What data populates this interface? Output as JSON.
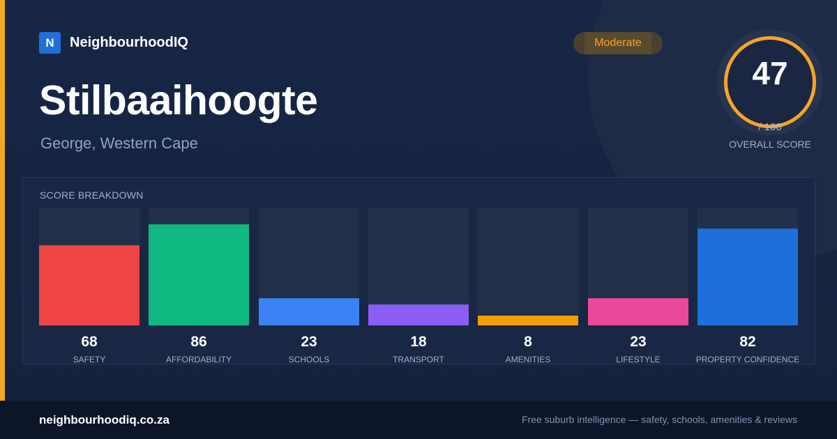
{
  "brand": {
    "logo_letter": "N",
    "name": "NeighbourhoodIQ",
    "accent_color": "#f5a623",
    "logo_color": "#1f6fd9"
  },
  "suburb": {
    "name": "Stilbaaihoogte",
    "location": "George, Western Cape"
  },
  "badge": {
    "label": "Moderate",
    "color": "#f5a623"
  },
  "overall": {
    "score": "47",
    "max": "/ 100",
    "caption": "OVERALL SCORE",
    "fraction": 0.47
  },
  "breakdown": {
    "title": "SCORE BREAKDOWN",
    "items": [
      {
        "value": "68",
        "label": "SAFETY",
        "score": 68,
        "color": "#ef4444"
      },
      {
        "value": "86",
        "label": "AFFORDABILITY",
        "score": 86,
        "color": "#10b981"
      },
      {
        "value": "23",
        "label": "SCHOOLS",
        "score": 23,
        "color": "#3b82f6"
      },
      {
        "value": "18",
        "label": "TRANSPORT",
        "score": 18,
        "color": "#8b5cf6"
      },
      {
        "value": "8",
        "label": "AMENITIES",
        "score": 8,
        "color": "#f59e0b"
      },
      {
        "value": "23",
        "label": "LIFESTYLE",
        "score": 23,
        "color": "#ec4899"
      },
      {
        "value": "82",
        "label": "PROPERTY CONFIDENCE",
        "score": 82,
        "color": "#1e6fd9"
      }
    ]
  },
  "footer": {
    "url": "neighbourhoodiq.co.za",
    "tagline": "Free suburb intelligence — safety, schools, amenities & reviews"
  }
}
